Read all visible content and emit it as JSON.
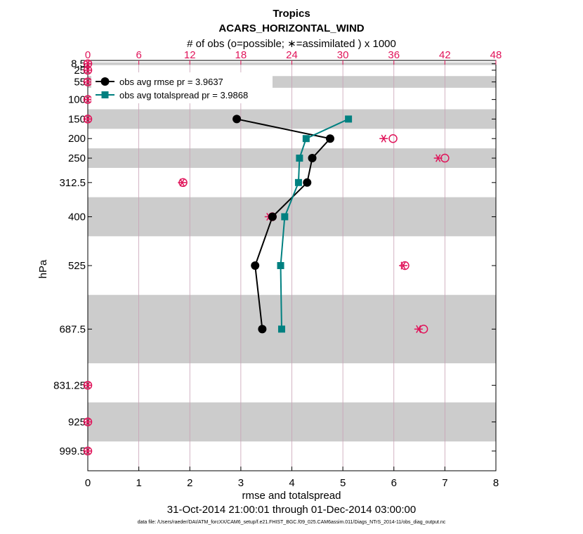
{
  "colors": {
    "rmse": "#000000",
    "spread": "#008080",
    "obs": "#e0145a",
    "band": "#cccccc",
    "grid": "#c8a0b4"
  },
  "chart_data": {
    "type": "line",
    "title": "Tropics",
    "subtitle": "ACARS_HORIZONTAL_WIND",
    "top_axis_label": "# of obs (o=possible; ∗=assimilated ) x 1000",
    "xlabel": "rmse and totalspread",
    "ylabel": "hPa",
    "date_range": "31-Oct-2014 21:00:01 through 01-Dec-2014 03:00:00",
    "footnote": "data file: /Users/raeder/DAI/ATM_forcXX/CAM6_setup/f.e21.FHIST_BGC.f09_025.CAM6assim.011/Diags_NTrS_2014-11/obs_diag_output.nc",
    "xlim": [
      0,
      8
    ],
    "x_ticks": [
      "0",
      "1",
      "2",
      "3",
      "4",
      "5",
      "6",
      "7",
      "8"
    ],
    "top_xlim": [
      0,
      48
    ],
    "top_ticks": [
      "0",
      "6",
      "12",
      "18",
      "24",
      "30",
      "36",
      "42",
      "48"
    ],
    "ylim": [
      1050,
      0
    ],
    "levels": [
      8.5,
      25,
      55,
      100,
      150,
      200,
      250,
      312.5,
      400,
      525,
      687.5,
      831.25,
      925,
      999.5
    ],
    "level_labels": [
      "8.5",
      "25",
      "55",
      "100",
      "150",
      "200",
      "250",
      "312.5",
      "400",
      "525",
      "687.5",
      "831.25",
      "925",
      "999.5"
    ],
    "shaded_layers_hPa": [
      [
        5,
        12
      ],
      [
        40,
        70
      ],
      [
        125,
        175
      ],
      [
        225,
        275
      ],
      [
        350,
        450
      ],
      [
        600,
        775
      ],
      [
        875,
        975
      ]
    ],
    "series": [
      {
        "name": "obs avg rmse pr = 3.9637",
        "levels": [
          150,
          200,
          250,
          312.5,
          400,
          525,
          687.5
        ],
        "values": [
          2.92,
          4.75,
          4.4,
          4.3,
          3.62,
          3.28,
          3.42
        ]
      },
      {
        "name": "obs avg totalspread pr = 3.9868",
        "levels": [
          150,
          200,
          250,
          312.5,
          400,
          525,
          687.5
        ],
        "values": [
          5.11,
          4.28,
          4.15,
          4.13,
          3.86,
          3.78,
          3.8
        ]
      }
    ],
    "obs_counts_thousands": {
      "levels": [
        8.5,
        25,
        55,
        100,
        150,
        200,
        250,
        312.5,
        400,
        525,
        687.5,
        831.25,
        925,
        999.5
      ],
      "possible": [
        0,
        0,
        0,
        0,
        0,
        35.9,
        42.0,
        11.2,
        21.7,
        37.3,
        39.5,
        0,
        0,
        0
      ],
      "assimilated": [
        0,
        0,
        0,
        0,
        0,
        34.8,
        41.2,
        11.1,
        21.3,
        37.1,
        38.9,
        0,
        0,
        0
      ]
    }
  }
}
